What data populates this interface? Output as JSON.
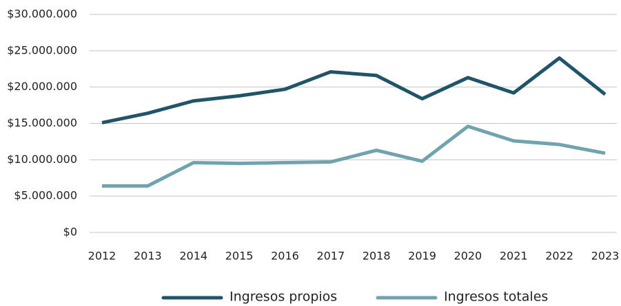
{
  "chart_data": {
    "type": "line",
    "categories": [
      "2012",
      "2013",
      "2014",
      "2015",
      "2016",
      "2017",
      "2018",
      "2019",
      "2020",
      "2021",
      "2022",
      "2023"
    ],
    "series": [
      {
        "name": "Ingresos propios",
        "color": "#1f5469",
        "values": [
          15100000,
          16400000,
          18100000,
          18800000,
          19700000,
          22100000,
          21600000,
          18400000,
          21300000,
          19200000,
          24000000,
          19000000
        ]
      },
      {
        "name": "Ingresos totales",
        "color": "#6fa3ad",
        "values": [
          6400000,
          6400000,
          9600000,
          9500000,
          9600000,
          9700000,
          11300000,
          9800000,
          14600000,
          12600000,
          12100000,
          10900000
        ]
      }
    ],
    "ylim": [
      0,
      30000000
    ],
    "yticks": [
      {
        "value": 0,
        "label": "$0"
      },
      {
        "value": 5000000,
        "label": "$5.000.000"
      },
      {
        "value": 10000000,
        "label": "$10.000.000"
      },
      {
        "value": 15000000,
        "label": "$15.000.000"
      },
      {
        "value": 20000000,
        "label": "$20.000.000"
      },
      {
        "value": 25000000,
        "label": "$25.000.000"
      },
      {
        "value": 30000000,
        "label": "$30.000.000"
      }
    ],
    "grid": true,
    "legend": "bottom"
  }
}
